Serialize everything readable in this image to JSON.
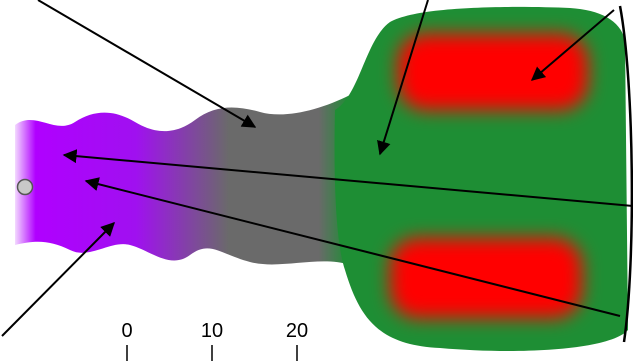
{
  "scale": {
    "ticks": [
      0,
      10,
      20
    ]
  }
}
